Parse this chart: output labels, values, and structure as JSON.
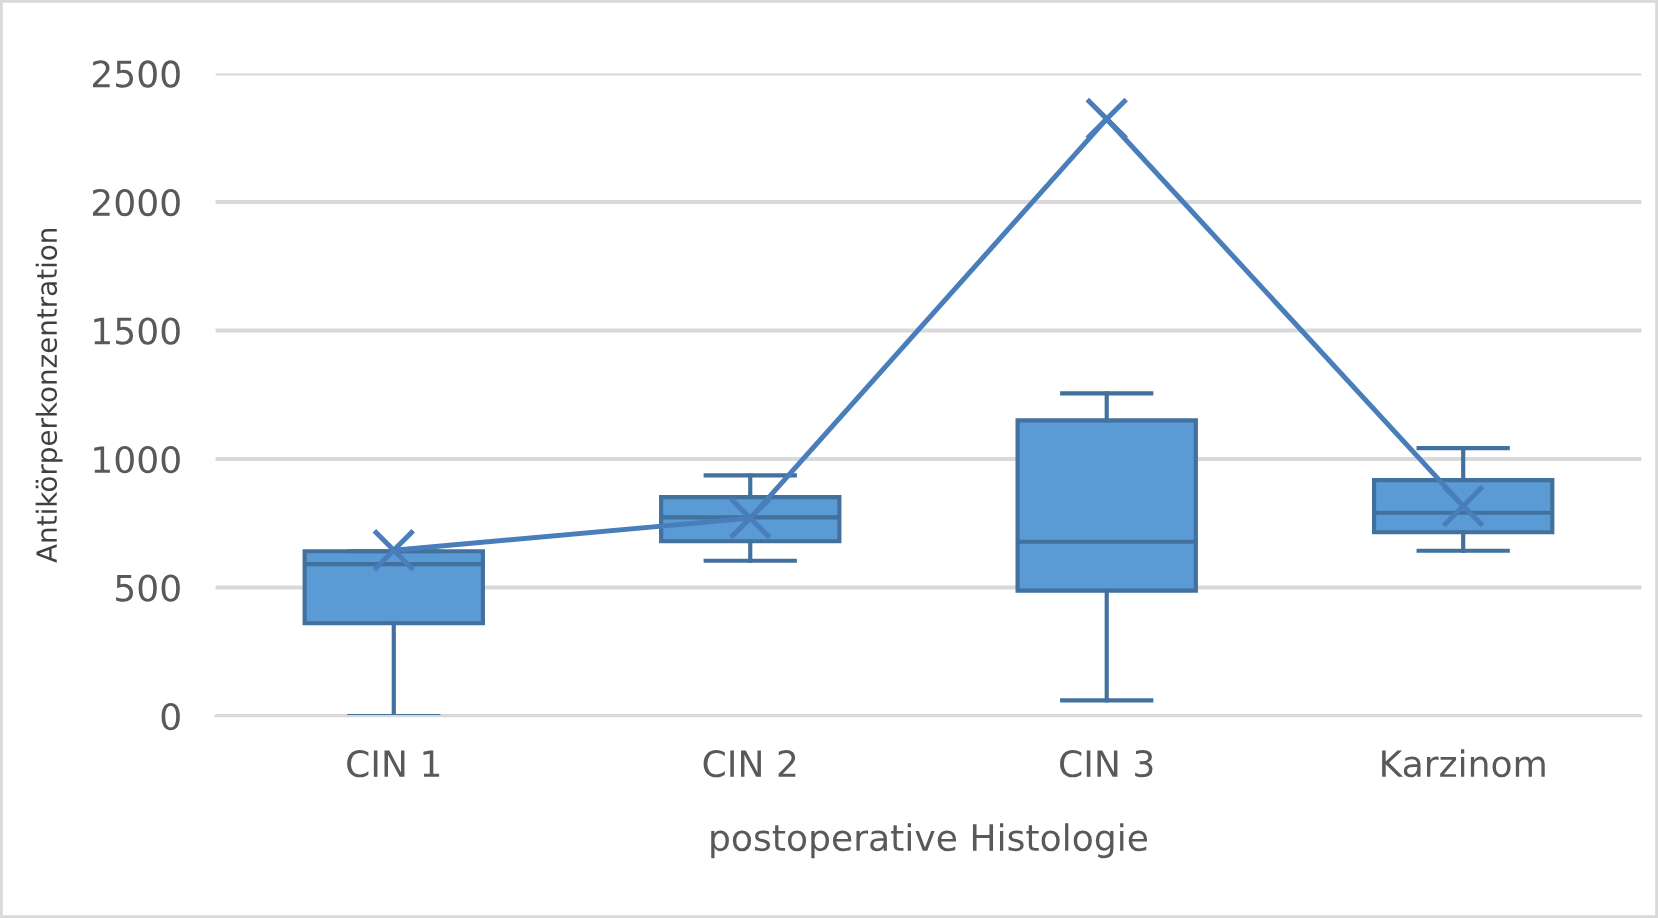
{
  "chart_data": {
    "type": "box",
    "xlabel": "postoperative Histologie",
    "ylabel": "Antikörperkonzentration",
    "categories": [
      "CIN 1",
      "CIN 2",
      "CIN 3",
      "Karzinom"
    ],
    "ylim": [
      0,
      2500
    ],
    "yticks": [
      0,
      500,
      1000,
      1500,
      2000,
      2500
    ],
    "grid": "y",
    "legend": false,
    "boxes": [
      {
        "low": 0,
        "q1": 361,
        "median": 591,
        "q3": 641,
        "high": 641
      },
      {
        "low": 604,
        "q1": 680,
        "median": 773,
        "q3": 852,
        "high": 936
      },
      {
        "low": 61,
        "q1": 488,
        "median": 678,
        "q3": 1150,
        "high": 1255
      },
      {
        "low": 643,
        "q1": 715,
        "median": 791,
        "q3": 918,
        "high": 1042
      }
    ],
    "color": "#5b9bd5",
    "series": [
      {
        "type": "line",
        "color": "#4a7ebb",
        "marker": "cross",
        "values": [
          645,
          770,
          2323,
          817
        ]
      }
    ]
  }
}
